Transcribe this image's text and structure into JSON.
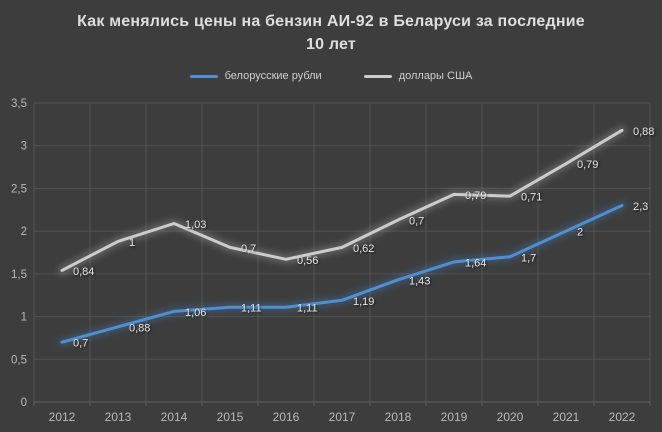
{
  "title": {
    "full": "Как менялись цены на бензин АИ-92 в Беларуси за последние 10 лет",
    "line1": "Как менялись цены на бензин АИ-92 в Беларуси за последние",
    "line2": "10 лет"
  },
  "chart_data": {
    "type": "line",
    "stacked": true,
    "title": "Как менялись цены на бензин АИ-92 в Беларуси за последние 10 лет",
    "categories": [
      "2012",
      "2013",
      "2014",
      "2015",
      "2016",
      "2017",
      "2018",
      "2019",
      "2020",
      "2021",
      "2022"
    ],
    "series": [
      {
        "name": "белорусские рубли",
        "color": "#4E8FD4",
        "values": [
          0.7,
          0.88,
          1.06,
          1.11,
          1.11,
          1.19,
          1.43,
          1.64,
          1.7,
          2,
          2.3
        ],
        "labels": [
          "0,7",
          "0,88",
          "1,06",
          "1,11",
          "1,11",
          "1,19",
          "1,43",
          "1,64",
          "1,7",
          "2",
          "2,3"
        ]
      },
      {
        "name": "доллары США",
        "color": "#CCCCCC",
        "values": [
          0.84,
          1,
          1.03,
          0.7,
          0.56,
          0.62,
          0.7,
          0.79,
          0.71,
          0.79,
          0.88
        ],
        "labels": [
          "0,84",
          "1",
          "1,03",
          "0,7",
          "0,56",
          "0,62",
          "0,7",
          "0,79",
          "0,71",
          "0,79",
          "0,88"
        ]
      }
    ],
    "ylim": [
      0,
      3.5
    ],
    "ytick_step": 0.5,
    "ytick_labels": [
      "0",
      "0,5",
      "1",
      "1,5",
      "2",
      "2,5",
      "3",
      "3,5"
    ],
    "grid": true,
    "legend_position": "top",
    "value_labels": true,
    "decimal_separator": ","
  },
  "colors": {
    "background": "#3D3D3D",
    "gridline": "#525252",
    "axis_text": "#B9B9B9",
    "data_label_text": "#E6E6E6",
    "title_text": "#DEDEDE",
    "legend_text": "#CFCFCF"
  }
}
